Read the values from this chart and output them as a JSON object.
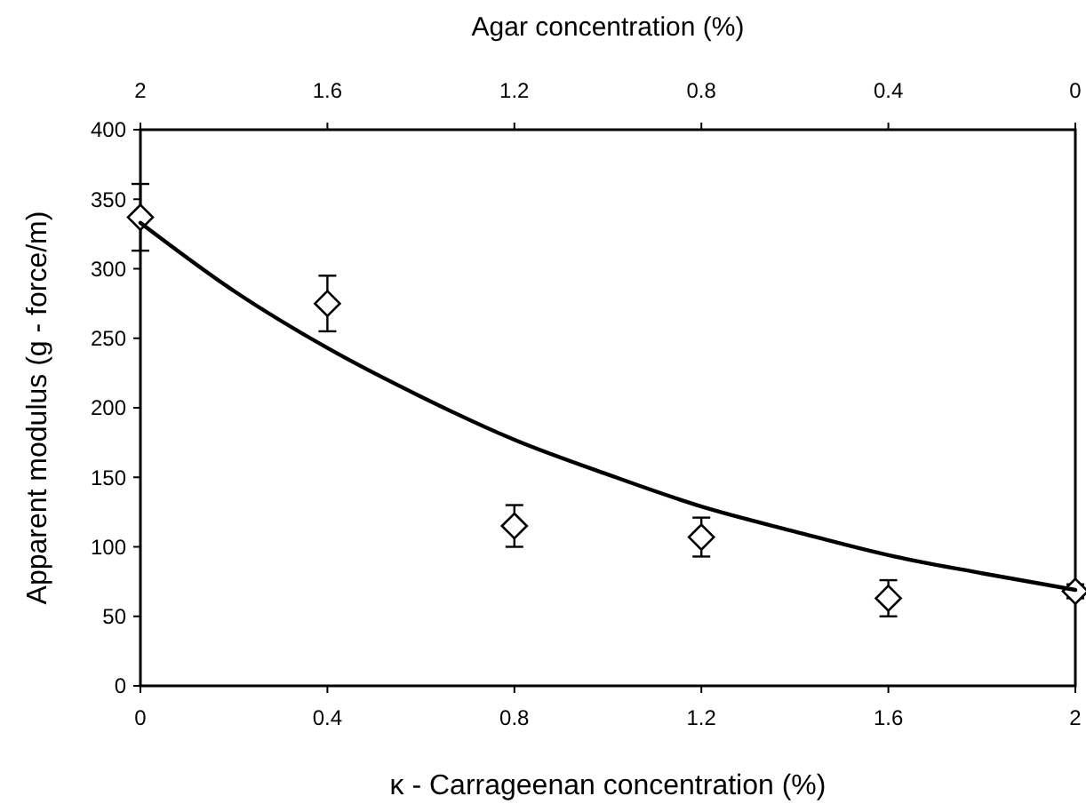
{
  "chart_data": {
    "type": "scatter",
    "xlabel": "κ - Carrageenan concentration (%)",
    "ylabel": "Apparent modulus (g - force/m)",
    "x2label": "Agar concentration (%)",
    "xlim": [
      0,
      2
    ],
    "xticks": [
      0,
      0.4,
      0.8,
      1.2,
      1.6,
      2
    ],
    "x2lim": [
      2,
      0
    ],
    "x2ticks": [
      2,
      1.6,
      1.2,
      0.8,
      0.4,
      0
    ],
    "ylim": [
      0,
      400
    ],
    "yticks": [
      0,
      50,
      100,
      150,
      200,
      250,
      300,
      350,
      400
    ],
    "grid": false,
    "series": [
      {
        "marker": "diamond",
        "color": "#000000",
        "x": [
          0,
          0.4,
          0.8,
          1.2,
          1.6,
          2
        ],
        "values": [
          337,
          275,
          115,
          107,
          63,
          68
        ],
        "errors": [
          24,
          20,
          15,
          14,
          13,
          5
        ]
      },
      {
        "type": "line",
        "marker": "none",
        "line_style": "solid",
        "color": "#000000",
        "x": [
          0,
          0.2,
          0.4,
          0.6,
          0.8,
          1.0,
          1.2,
          1.4,
          1.6,
          1.8,
          2.0
        ],
        "values": [
          333,
          284,
          243,
          208,
          177,
          152,
          129,
          111,
          94,
          81,
          69
        ]
      }
    ]
  }
}
